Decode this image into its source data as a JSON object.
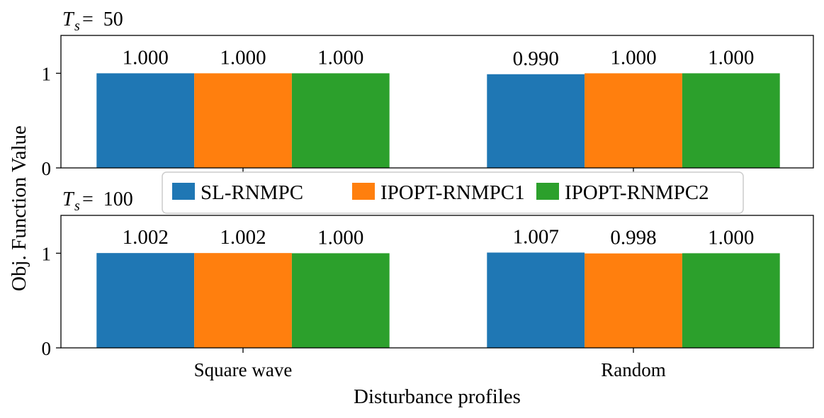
{
  "chart_data": [
    {
      "type": "bar",
      "title": {
        "symbol": "T",
        "subscript": "s",
        "rest": "= 50"
      },
      "categories": [
        "Square wave",
        "Random"
      ],
      "series": [
        {
          "name": "SL-RNMPC",
          "values": [
            1.0,
            0.99
          ],
          "labels": [
            "1.000",
            "0.990"
          ]
        },
        {
          "name": "IPOPT-RNMPC1",
          "values": [
            1.0,
            1.0
          ],
          "labels": [
            "1.000",
            "1.000"
          ]
        },
        {
          "name": "IPOPT-RNMPC2",
          "values": [
            1.0,
            1.0
          ],
          "labels": [
            "1.000",
            "1.000"
          ]
        }
      ],
      "ylim": [
        0,
        1.4
      ],
      "yticks": [
        "0",
        "1"
      ],
      "show_xticklabels": false
    },
    {
      "type": "bar",
      "title": {
        "symbol": "T",
        "subscript": "s",
        "rest": "= 100"
      },
      "categories": [
        "Square wave",
        "Random"
      ],
      "series": [
        {
          "name": "SL-RNMPC",
          "values": [
            1.002,
            1.007
          ],
          "labels": [
            "1.002",
            "1.007"
          ]
        },
        {
          "name": "IPOPT-RNMPC1",
          "values": [
            1.002,
            0.998
          ],
          "labels": [
            "1.002",
            "0.998"
          ]
        },
        {
          "name": "IPOPT-RNMPC2",
          "values": [
            1.0,
            1.0
          ],
          "labels": [
            "1.000",
            "1.000"
          ]
        }
      ],
      "ylim": [
        0,
        1.4
      ],
      "yticks": [
        "0",
        "1"
      ],
      "show_xticklabels": true
    }
  ],
  "shared": {
    "ylabel": "Obj. Function Value",
    "xlabel": "Disturbance profiles",
    "colors": [
      "#1f77b4",
      "#ff7f0e",
      "#2ca02c"
    ],
    "legend": {
      "placement": "upper-center between panels",
      "entries": [
        "SL-RNMPC",
        "IPOPT-RNMPC1",
        "IPOPT-RNMPC2"
      ]
    }
  }
}
